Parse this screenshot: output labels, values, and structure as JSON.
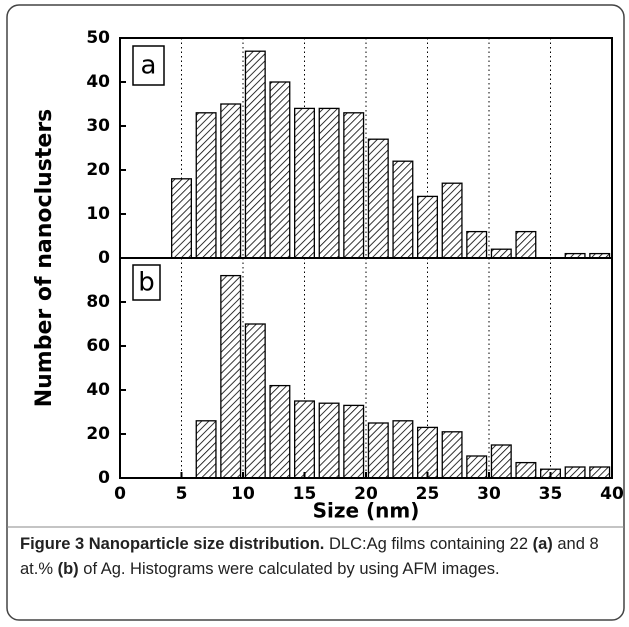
{
  "chart_data": [
    {
      "type": "histogram",
      "panel_label": "a",
      "ylabel": "Number of nanoclusters",
      "bins": [
        4,
        6,
        8,
        10,
        12,
        14,
        16,
        18,
        20,
        22,
        24,
        26,
        28,
        30,
        32,
        34,
        36,
        38,
        40
      ],
      "values": [
        18,
        33,
        35,
        47,
        40,
        34,
        34,
        33,
        27,
        22,
        14,
        17,
        6,
        2,
        6,
        0,
        1,
        1
      ],
      "color": "#000000",
      "xlim": [
        0,
        40
      ],
      "ylim": [
        0,
        50
      ],
      "yticks": [
        0,
        10,
        20,
        30,
        40,
        50
      ],
      "grid": true
    },
    {
      "type": "histogram",
      "panel_label": "b",
      "xlabel": "Size (nm)",
      "bins": [
        4,
        6,
        8,
        10,
        12,
        14,
        16,
        18,
        20,
        22,
        24,
        26,
        28,
        30,
        32,
        34,
        36,
        38,
        40
      ],
      "values": [
        0,
        26,
        92,
        70,
        42,
        35,
        34,
        33,
        25,
        26,
        23,
        21,
        10,
        15,
        7,
        4,
        5,
        5
      ],
      "color": "#000000",
      "xlim": [
        0,
        40
      ],
      "ylim": [
        0,
        100
      ],
      "yticks": [
        0,
        20,
        40,
        60,
        80
      ],
      "xticks": [
        0,
        5,
        10,
        15,
        20,
        25,
        30,
        35,
        40
      ],
      "grid": true
    }
  ],
  "caption": {
    "title": "Figure 3 Nanoparticle size distribution.",
    "parts": [
      "DLC:Ag films containing 22 ",
      "(a)",
      " and 8 at.% ",
      "(b)",
      " of Ag. Histograms were calculated by using AFM images."
    ]
  }
}
